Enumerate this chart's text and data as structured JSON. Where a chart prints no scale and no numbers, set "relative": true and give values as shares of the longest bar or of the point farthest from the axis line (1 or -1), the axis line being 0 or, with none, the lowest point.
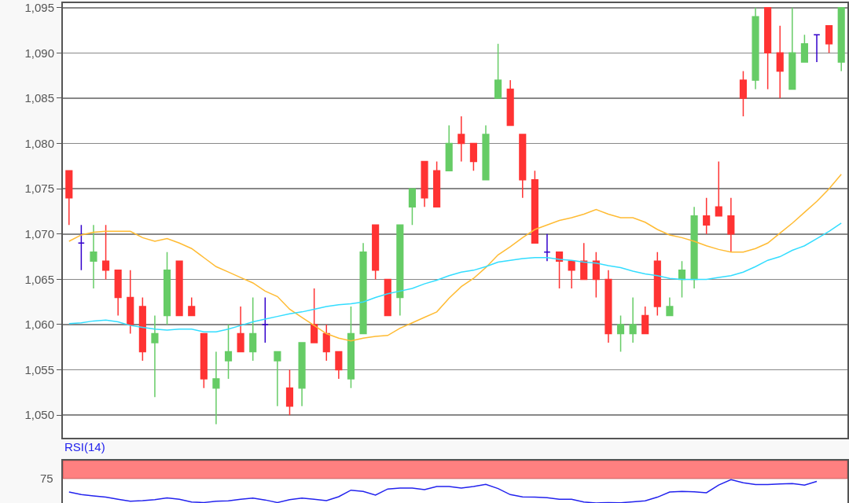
{
  "chart_data": [
    {
      "type": "candlestick",
      "categories": [
        null,
        null,
        null,
        null,
        null,
        null,
        null,
        null,
        null,
        null,
        null,
        null,
        null,
        null,
        null,
        null,
        null,
        null,
        null,
        null,
        null,
        null,
        null,
        null,
        null,
        null,
        null,
        null,
        null,
        null,
        null,
        null,
        null,
        null,
        null,
        null,
        null,
        null,
        null,
        null,
        null,
        null,
        null,
        null,
        null,
        null,
        null,
        null,
        null,
        null,
        null,
        null,
        null,
        null,
        null,
        null,
        null,
        null,
        null,
        null,
        null,
        null,
        null,
        null
      ],
      "ohlc": [
        [
          1077,
          1077,
          1071,
          1074
        ],
        [
          1069,
          1071,
          1066,
          1069
        ],
        [
          1067,
          1071,
          1064,
          1068
        ],
        [
          1067,
          1071,
          1065,
          1066
        ],
        [
          1066,
          1066,
          1061,
          1063
        ],
        [
          1063,
          1066,
          1059,
          1060
        ],
        [
          1062,
          1063,
          1056,
          1057
        ],
        [
          1058,
          1061,
          1052,
          1059
        ],
        [
          1061,
          1068,
          1060,
          1066
        ],
        [
          1067,
          1067,
          1061,
          1061
        ],
        [
          1062,
          1063,
          1061,
          1061
        ],
        [
          1059,
          1059,
          1053,
          1054
        ],
        [
          1053,
          1057,
          1049,
          1054
        ],
        [
          1056,
          1060,
          1054,
          1057
        ],
        [
          1059,
          1062,
          1057,
          1057
        ],
        [
          1057,
          1063,
          1056,
          1059
        ],
        [
          1060,
          1063,
          1058,
          1060
        ],
        [
          1056,
          1057,
          1051,
          1057
        ],
        [
          1053,
          1055,
          1050,
          1051
        ],
        [
          1053,
          1058,
          1051,
          1058
        ],
        [
          1060,
          1064,
          1058,
          1058
        ],
        [
          1059,
          1060,
          1056,
          1057
        ],
        [
          1057,
          1057,
          1054,
          1055
        ],
        [
          1054,
          1062,
          1053,
          1059
        ],
        [
          1059,
          1069,
          1059,
          1068
        ],
        [
          1071,
          1071,
          1065,
          1066
        ],
        [
          1065,
          1065,
          1061,
          1061
        ],
        [
          1063,
          1071,
          1061,
          1071
        ],
        [
          1073,
          1075,
          1071,
          1075
        ],
        [
          1078,
          1078,
          1073,
          1074
        ],
        [
          1077,
          1078,
          1073,
          1073
        ],
        [
          1077,
          1082,
          1077,
          1080
        ],
        [
          1081,
          1083,
          1078,
          1080
        ],
        [
          1080,
          1080,
          1077,
          1078
        ],
        [
          1076,
          1082,
          1076,
          1081
        ],
        [
          1085,
          1091,
          1085,
          1087
        ],
        [
          1086,
          1087,
          1082,
          1082
        ],
        [
          1081,
          1081,
          1074,
          1076
        ],
        [
          1076,
          1077,
          1069,
          1069
        ],
        [
          1068,
          1070,
          1067,
          1068
        ],
        [
          1068,
          1068,
          1064,
          1067
        ],
        [
          1067,
          1067,
          1064,
          1066
        ],
        [
          1067,
          1069,
          1065,
          1065
        ],
        [
          1067,
          1068,
          1063,
          1065
        ],
        [
          1065,
          1066,
          1058,
          1059
        ],
        [
          1059,
          1061,
          1057,
          1060
        ],
        [
          1059,
          1063,
          1058,
          1060
        ],
        [
          1061,
          1062,
          1059,
          1059
        ],
        [
          1067,
          1068,
          1061,
          1062
        ],
        [
          1061,
          1063,
          1061,
          1062
        ],
        [
          1065,
          1067,
          1063,
          1066
        ],
        [
          1065,
          1073,
          1064,
          1072
        ],
        [
          1072,
          1074,
          1070,
          1071
        ],
        [
          1073,
          1078,
          1072,
          1072
        ],
        [
          1072,
          1074,
          1068,
          1070
        ],
        [
          1087,
          1088,
          1083,
          1085
        ],
        [
          1087,
          1095,
          1086,
          1094
        ],
        [
          1095,
          1095,
          1086,
          1090
        ],
        [
          1090,
          1093,
          1085,
          1088
        ],
        [
          1086,
          1095,
          1086,
          1090
        ],
        [
          1089,
          1092,
          1089,
          1091
        ],
        [
          1092,
          1092,
          1089,
          1092
        ],
        [
          1093,
          1093,
          1090,
          1091
        ],
        [
          1089,
          1095,
          1088,
          1095
        ]
      ],
      "colors": [
        "#ff3333",
        "#3300cc",
        "#66cc66",
        "#ff3333",
        "#ff3333",
        "#ff3333",
        "#ff3333",
        "#66cc66",
        "#66cc66",
        "#ff3333",
        "#ff3333",
        "#ff3333",
        "#66cc66",
        "#66cc66",
        "#ff3333",
        "#66cc66",
        "#3300cc",
        "#66cc66",
        "#ff3333",
        "#66cc66",
        "#ff3333",
        "#ff3333",
        "#ff3333",
        "#66cc66",
        "#66cc66",
        "#ff3333",
        "#ff3333",
        "#66cc66",
        "#66cc66",
        "#ff3333",
        "#ff3333",
        "#66cc66",
        "#ff3333",
        "#ff3333",
        "#66cc66",
        "#66cc66",
        "#ff3333",
        "#ff3333",
        "#ff3333",
        "#3300cc",
        "#ff3333",
        "#ff3333",
        "#ff3333",
        "#ff3333",
        "#ff3333",
        "#66cc66",
        "#66cc66",
        "#ff3333",
        "#ff3333",
        "#66cc66",
        "#66cc66",
        "#66cc66",
        "#ff3333",
        "#ff3333",
        "#ff3333",
        "#ff3333",
        "#66cc66",
        "#ff3333",
        "#ff3333",
        "#66cc66",
        "#66cc66",
        "#3300cc",
        "#ff3333",
        "#66cc66"
      ],
      "series": [
        {
          "type": "line",
          "color": "#ffbb33",
          "values": [
            1069.2,
            1069.9,
            1070.2,
            1070.3,
            1070.3,
            1070.3,
            1069.6,
            1069.2,
            1069.5,
            1069.0,
            1068.4,
            1067.4,
            1066.4,
            1065.8,
            1065.2,
            1064.6,
            1063.7,
            1063.1,
            1061.7,
            1060.8,
            1059.9,
            1059.0,
            1058.5,
            1058.2,
            1058.5,
            1058.7,
            1058.8,
            1059.6,
            1060.2,
            1060.8,
            1061.4,
            1062.9,
            1064.2,
            1065.1,
            1066.3,
            1067.7,
            1068.6,
            1069.6,
            1070.5,
            1071.0,
            1071.5,
            1071.8,
            1072.2,
            1072.7,
            1072.2,
            1071.8,
            1071.8,
            1071.3,
            1070.5,
            1069.9,
            1069.6,
            1069.2,
            1068.7,
            1068.3,
            1068.0,
            1068.0,
            1068.4,
            1069.0,
            1070.1,
            1071.2,
            1072.4,
            1073.6,
            1075.0,
            1076.6
          ]
        },
        {
          "type": "line",
          "color": "#33ddff",
          "values": [
            1060.1,
            1060.2,
            1060.4,
            1060.5,
            1060.3,
            1059.9,
            1059.7,
            1059.5,
            1059.4,
            1059.5,
            1059.5,
            1059.2,
            1059.2,
            1059.5,
            1059.9,
            1060.3,
            1060.6,
            1060.9,
            1061.2,
            1061.4,
            1061.7,
            1062.0,
            1062.2,
            1062.3,
            1062.5,
            1063.0,
            1063.4,
            1063.7,
            1064.0,
            1064.5,
            1064.9,
            1065.4,
            1065.8,
            1066.0,
            1066.4,
            1066.9,
            1067.1,
            1067.3,
            1067.4,
            1067.4,
            1067.2,
            1067.1,
            1066.9,
            1066.8,
            1066.5,
            1066.3,
            1065.9,
            1065.6,
            1065.4,
            1065.1,
            1065.0,
            1065.0,
            1065.0,
            1065.2,
            1065.4,
            1065.8,
            1066.4,
            1067.1,
            1067.5,
            1068.2,
            1068.7,
            1069.5,
            1070.3,
            1071.2
          ]
        }
      ],
      "ylim": [
        1047.5,
        1095.5
      ],
      "yticks": [
        {
          "value": 1050,
          "label": "1,050"
        },
        {
          "value": 1055,
          "label": "1,055"
        },
        {
          "value": 1060,
          "label": "1,060"
        },
        {
          "value": 1065,
          "label": "1,065"
        },
        {
          "value": 1070,
          "label": "1,070"
        },
        {
          "value": 1075,
          "label": "1,075"
        },
        {
          "value": 1080,
          "label": "1,080"
        },
        {
          "value": 1085,
          "label": "1,085"
        },
        {
          "value": 1090,
          "label": "1,090"
        },
        {
          "value": 1095,
          "label": "1,095"
        }
      ],
      "grid": "y",
      "tick_labels": "y"
    },
    {
      "type": "line",
      "title": "RSI(14)",
      "categories": [
        null,
        null,
        null,
        null,
        null,
        null,
        null,
        null,
        null,
        null,
        null,
        null,
        null,
        null,
        null,
        null,
        null,
        null,
        null,
        null,
        null,
        null,
        null,
        null,
        null,
        null,
        null,
        null,
        null,
        null,
        null,
        null,
        null,
        null,
        null,
        null,
        null,
        null,
        null,
        null,
        null,
        null,
        null,
        null,
        null,
        null,
        null,
        null,
        null,
        null,
        null,
        null,
        null,
        null,
        null,
        null,
        null,
        null,
        null,
        null,
        null,
        null,
        null,
        null
      ],
      "series": [
        {
          "color": "#2222ee",
          "values": [
            0.47,
            0.36,
            0.3,
            0.25,
            0.16,
            0.08,
            0.1,
            0.14,
            0.22,
            0.16,
            0.04,
            0.02,
            0.08,
            0.09,
            0.16,
            0.21,
            0.13,
            0.02,
            0.14,
            0.21,
            0.16,
            0.1,
            0.27,
            0.55,
            0.5,
            0.34,
            0.6,
            0.64,
            0.64,
            0.57,
            0.71,
            0.71,
            0.64,
            0.71,
            0.8,
            0.62,
            0.36,
            0.26,
            0.25,
            0.23,
            0.16,
            0.16,
            0.04,
            0,
            0.02,
            0.01,
            0.05,
            0.09,
            0.25,
            0.47,
            0.5,
            0.48,
            0.44,
            0.77,
            1,
            0.87,
            0.79,
            0.79,
            0.82,
            0.83,
            0.77,
            0.93,
            null,
            null
          ]
        }
      ],
      "relative": true,
      "annotations": [
        "75"
      ],
      "bands": [
        {
          "axis": "y",
          "from": 1.05,
          "to": 1.82,
          "color": "#ff8080"
        }
      ],
      "tick_labels": false
    }
  ]
}
